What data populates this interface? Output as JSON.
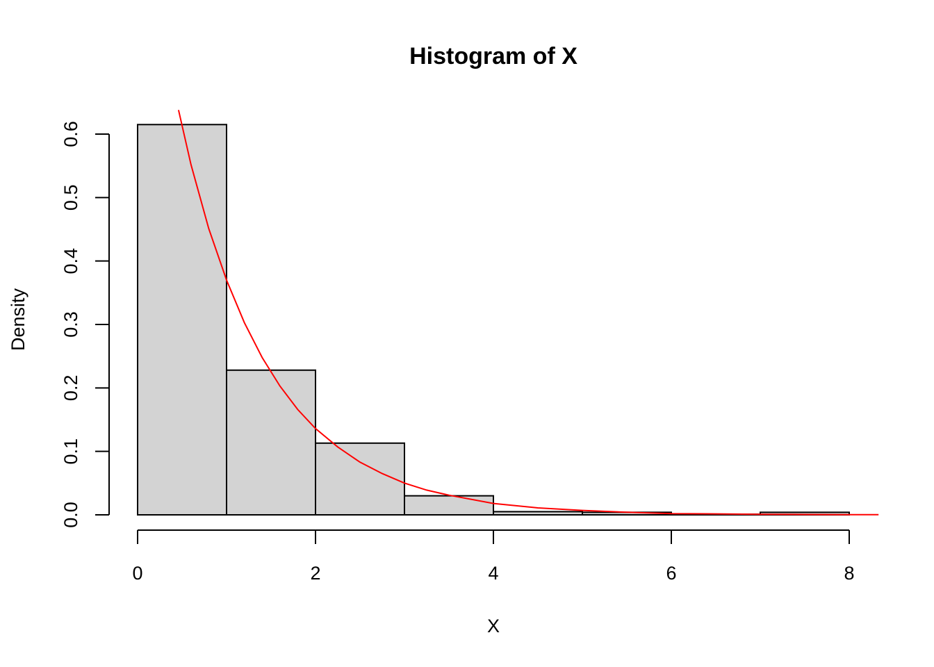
{
  "chart_data": {
    "type": "bar",
    "title": "Histogram of X",
    "xlabel": "X",
    "ylabel": "Density",
    "xlim": [
      0,
      8
    ],
    "ylim": [
      0,
      0.6
    ],
    "x_ticks": [
      0,
      2,
      4,
      6,
      8
    ],
    "y_ticks": [
      0.0,
      0.1,
      0.2,
      0.3,
      0.4,
      0.5,
      0.6
    ],
    "x_tick_labels": [
      "0",
      "2",
      "4",
      "6",
      "8"
    ],
    "y_tick_labels": [
      "0.0",
      "0.1",
      "0.2",
      "0.3",
      "0.4",
      "0.5",
      "0.6"
    ],
    "grid": false,
    "bins": [
      {
        "start": 0,
        "end": 1,
        "density": 0.615
      },
      {
        "start": 1,
        "end": 2,
        "density": 0.228
      },
      {
        "start": 2,
        "end": 3,
        "density": 0.113
      },
      {
        "start": 3,
        "end": 4,
        "density": 0.03
      },
      {
        "start": 4,
        "end": 5,
        "density": 0.005
      },
      {
        "start": 5,
        "end": 6,
        "density": 0.004
      },
      {
        "start": 6,
        "end": 7,
        "density": 0.001
      },
      {
        "start": 7,
        "end": 8,
        "density": 0.004
      }
    ],
    "overlay_curve": {
      "type": "line",
      "color": "#ff0000",
      "x": [
        0.46,
        0.6,
        0.8,
        1.0,
        1.2,
        1.4,
        1.6,
        1.8,
        2.0,
        2.25,
        2.5,
        2.75,
        3.0,
        3.25,
        3.5,
        4.0,
        4.5,
        5.0,
        5.5,
        6.0,
        6.5,
        7.0,
        7.5,
        8.0,
        8.33
      ],
      "y": [
        0.638,
        0.552,
        0.451,
        0.37,
        0.303,
        0.248,
        0.203,
        0.166,
        0.136,
        0.107,
        0.083,
        0.065,
        0.05,
        0.039,
        0.031,
        0.018,
        0.011,
        0.007,
        0.004,
        0.002,
        0.0015,
        0.0009,
        0.0006,
        0.0003,
        0.0002
      ]
    },
    "colors": {
      "bar_fill": "#d3d3d3",
      "bar_stroke": "#000000",
      "curve": "#ff0000"
    }
  }
}
